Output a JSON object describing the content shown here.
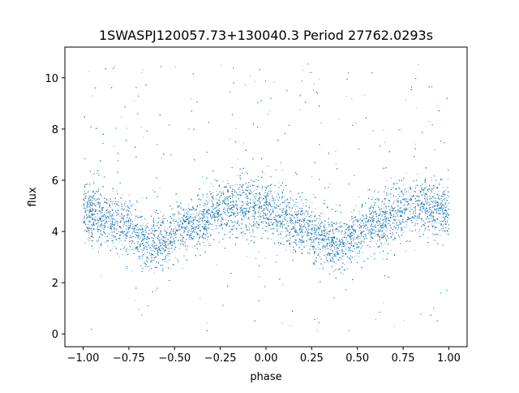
{
  "chart_data": {
    "type": "scatter",
    "title": "1SWASPJ120057.73+130040.3 Period 27762.0293s",
    "xlabel": "phase",
    "ylabel": "flux",
    "xlim": [
      -1.1,
      1.1
    ],
    "ylim": [
      -0.5,
      11.2
    ],
    "xticks": [
      -1.0,
      -0.75,
      -0.5,
      -0.25,
      0.0,
      0.25,
      0.5,
      0.75,
      1.0
    ],
    "xtick_labels": [
      "−1.00",
      "−0.75",
      "−0.50",
      "−0.25",
      "0.00",
      "0.25",
      "0.50",
      "0.75",
      "1.00"
    ],
    "yticks": [
      0,
      2,
      4,
      6,
      8,
      10
    ],
    "ytick_labels": [
      "0",
      "2",
      "4",
      "6",
      "8",
      "10"
    ],
    "grid": false,
    "point_color": "#1f77b4",
    "x_range": [
      -1.0,
      1.0
    ],
    "y_observed_range": [
      0,
      10.7
    ],
    "light_curve_profile": {
      "phase": [
        -1.0,
        -0.8,
        -0.6,
        -0.4,
        -0.2,
        0.0,
        0.2,
        0.4,
        0.6,
        0.8,
        1.0
      ],
      "median_flux": [
        4.8,
        4.3,
        3.5,
        4.3,
        5.0,
        4.8,
        4.2,
        3.5,
        4.3,
        5.0,
        4.8
      ]
    }
  }
}
